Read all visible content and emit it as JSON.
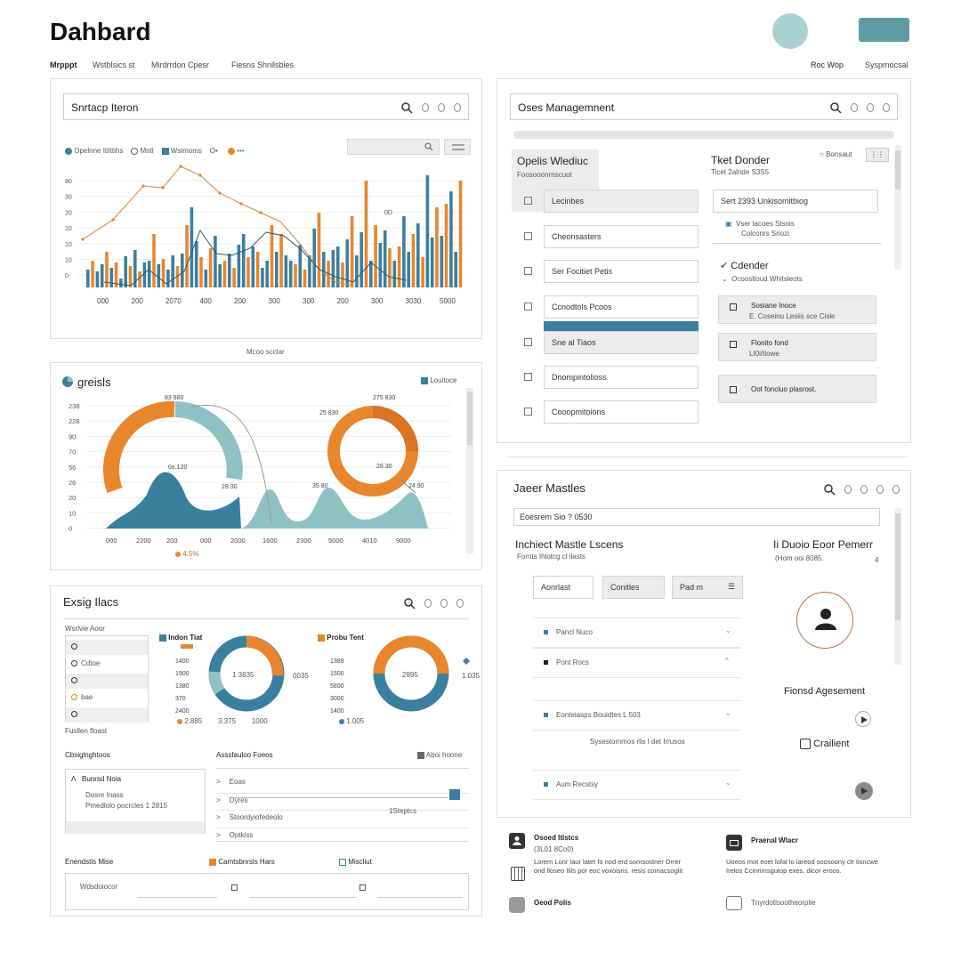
{
  "app": {
    "title": "Dahbard",
    "nav": [
      "Mrpppt",
      "Wstblsics st",
      "Mirdrrdon Cpesr",
      "Fiesns Shnllsbies"
    ],
    "nav_right": [
      "Roc Wop",
      "Syspmocsal"
    ]
  },
  "colors": {
    "orange": "#e8862e",
    "teal": "#3a7f9e",
    "light_teal": "#8fc1c4",
    "grey_panel": "#ececec"
  },
  "p1": {
    "search_label": "Snrtacp Iteron",
    "legend": [
      "Opelnne Itilttihs",
      "Mntl",
      "Wslmoms",
      "O•",
      "•••"
    ],
    "y_ticks": [
      "80",
      "30",
      "20",
      "10",
      "10",
      "10",
      "0"
    ],
    "x_ticks": [
      "000",
      "200",
      "2070",
      "400",
      "200",
      "300",
      "300",
      "200",
      "300",
      "3030",
      "5000"
    ],
    "footer": "Mcoo scclar",
    "peak_label": "0D"
  },
  "p2": {
    "title": "greisls",
    "legend_label": "Louitoce",
    "y_ticks": [
      "238",
      "228",
      "90",
      "70",
      "56",
      "26",
      "20",
      "10",
      "0"
    ],
    "x_ticks": [
      "000",
      "2200",
      "200",
      "000",
      "2000",
      "1600",
      "2300",
      "5000",
      "4010",
      "9000"
    ],
    "labels": [
      "83 880",
      "275 830",
      "25 830",
      "0±.120",
      "28 30",
      "28.30",
      "35 80",
      "24.90"
    ],
    "footer": "4.5%"
  },
  "p3": {
    "title": "Exsig Ilacs",
    "list_header": "Wsrlvie Aoor",
    "options": [
      "",
      "Cdtoe",
      "",
      "bae",
      ""
    ],
    "list_footer": "Fusllen floast",
    "chart1_title": "Indon Tiat",
    "chart2_title": "Probu Tent",
    "chart1_ticks": [
      "1400",
      "1900",
      "1380",
      "370",
      "2400"
    ],
    "chart2_ticks": [
      "1389",
      "1500",
      "5800",
      "3000",
      "1400"
    ],
    "chart1_center": "1 3835",
    "chart2_center": "2895",
    "chart1_side": "0035",
    "chart2_side": "1.035",
    "chart1_footer": [
      "2.885",
      "3.375",
      "1000"
    ],
    "chart2_footer": "1.005",
    "sub_left_title": "Cbsiglnghtoos",
    "tree_items": [
      "Bunrsd Noia",
      "Dosre Inass",
      "Pmedlolo pocrcles 1 2815"
    ],
    "sub_mid_title": "Asssfauloo Foeos",
    "sub_mid_right": "Aboi hoone",
    "list_rows": [
      "Eoas",
      "Dyres",
      "Stoordyiofedeolo",
      "Optkiss"
    ],
    "list_row_value": "1Steptcs",
    "bottom_labels": [
      "Enendstis Mise",
      "Camtsbnrsls Hars",
      "Miscliut"
    ],
    "bottom_input": "Wdsdoiocor"
  },
  "p4": {
    "search_label": "Oses Managemnent",
    "left_header": "Opelis Wlediuc",
    "left_sub": "Foosooonrnscuot",
    "items": [
      "Lecinbes",
      "Cheonsasters",
      "Ser Focitiet Petis",
      "Ccnodtols Pcoos",
      "Sne al Tiaos",
      "Dnompintolioss",
      "Cooopmitoions"
    ],
    "right_title": "Tket Donder",
    "right_sub": "Ticet 2alnde S3S5",
    "toggle_label": "Bonsaut",
    "search_value": "Sert 2393 Unkisomitbiog",
    "note": [
      "Vser lacoes Stsois",
      "Colconrs Sriozi"
    ],
    "right_head": "Cdender",
    "right_head_sub": "Ocoosltoud Whitsleots",
    "cards": [
      [
        "Sosiane Inoce",
        "E. Coseinu Lesiis sce Cisle"
      ],
      [
        "Flonito fond",
        "LI0i/tiowe"
      ],
      [
        "Oot foncluo plasrost.",
        ""
      ]
    ]
  },
  "p5": {
    "title": "Jaeer Mastles",
    "input_value": "Eoesrem Sio ? 0530",
    "left_title": "Inchiect Mastle Lscens",
    "left_sub": "Fornts Ihlotcg cl ilasts",
    "btns": [
      "Aonrlast",
      "Conitles",
      "Pad m"
    ],
    "rows": [
      "Pancl Nuco",
      "Pont Rocs",
      "Eonteiasps Bouidtes L 503",
      "Aum Recstsy"
    ],
    "row_caption": "Sysestommos rlis l det Irrusos",
    "right_title": "Ii Duoio Eoor Pemerr",
    "right_sub": "(Hom ooi 8085.",
    "right_sub_mark": "4",
    "profile_label": "Fionsd Agesement",
    "cta": "Crailient"
  },
  "footer": {
    "items": [
      {
        "title": "Osoed Itlstcs",
        "sub": "(3L01 8Co0)"
      },
      {
        "title": "Praenal Wlacr",
        "sub": ""
      }
    ],
    "para_left": "Lorem Lonr laur latet fo nod erd somsostner Drrer ond lloseo Ilils por eoc voxoisns. resis comacsoglit",
    "para_right": "Uoeos mot eoet lofal lo lareod soosoony clr Iisncwe Irelos Ccinrimsgutop exes. dicor eroos.",
    "bottom_left": "Oeod Polis",
    "bottom_right": "Tnyrdotlsootheorplie"
  }
}
